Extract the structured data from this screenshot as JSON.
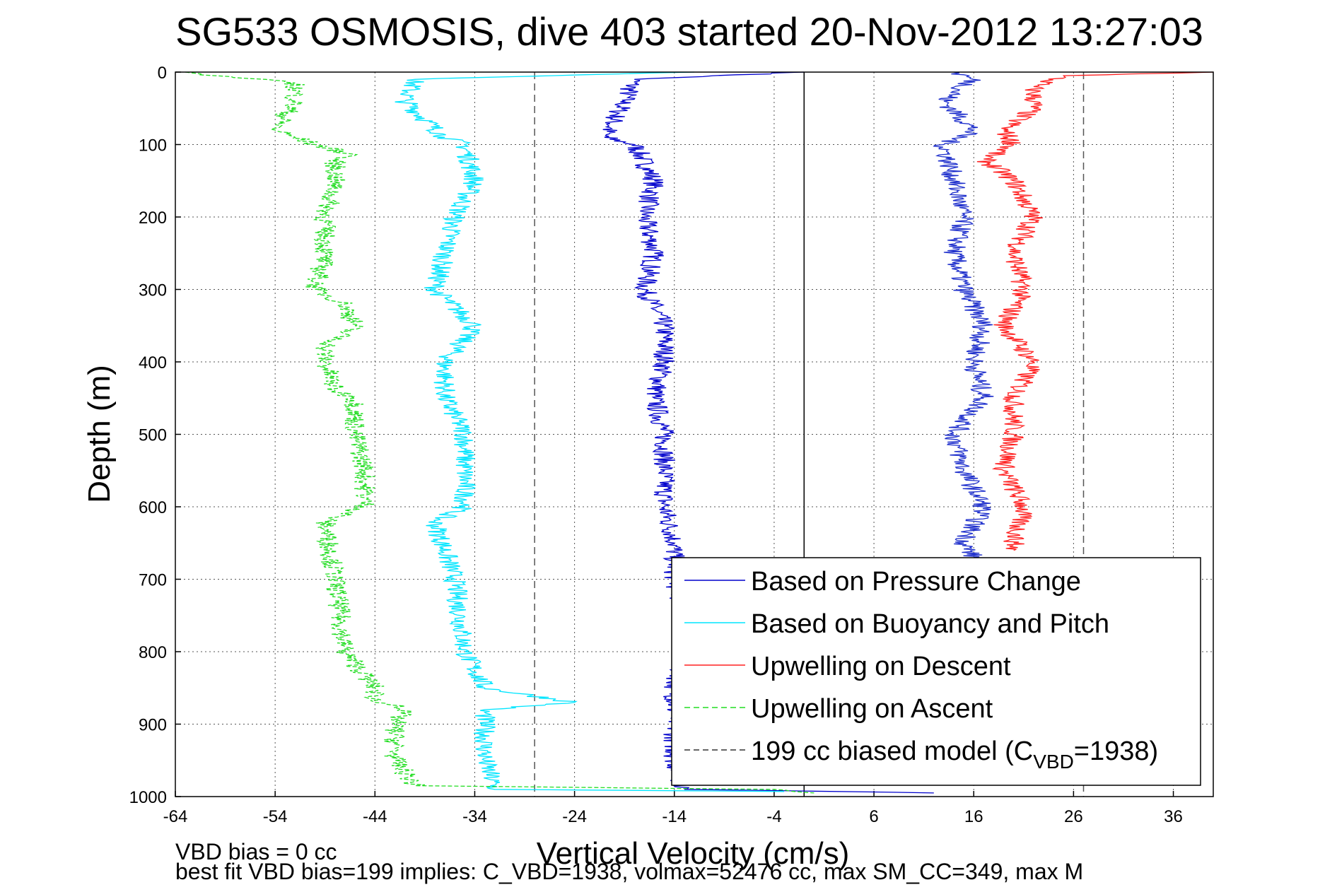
{
  "chart_data": {
    "type": "line",
    "title": "SG533 OSMOSIS, dive 403 started 20-Nov-2012 13:27:03",
    "xlabel": "Vertical Velocity (cm/s)",
    "ylabel": "Depth (m)",
    "xlim": [
      -64,
      40
    ],
    "ylim": [
      0,
      1000
    ],
    "y_reversed": true,
    "grid": true,
    "x_ticks": [
      -64,
      -54,
      -44,
      -34,
      -24,
      -14,
      -4,
      6,
      16,
      26,
      36
    ],
    "y_ticks": [
      0,
      100,
      200,
      300,
      400,
      500,
      600,
      700,
      800,
      900,
      1000
    ],
    "reference_lines": [
      {
        "x": -1,
        "style": "solid",
        "color": "#000000"
      },
      {
        "x": -28,
        "style": "dashed",
        "color": "#555555"
      },
      {
        "x": 27,
        "style": "dashed",
        "color": "#555555"
      }
    ],
    "legend": {
      "position": "bottom-right",
      "entries": [
        {
          "label": "Based on Pressure Change",
          "color": "#0000cc",
          "style": "solid"
        },
        {
          "label": "Based on Buoyancy and Pitch",
          "color": "#00e5ff",
          "style": "solid"
        },
        {
          "label": "Upwelling on Descent",
          "color": "#ff2020",
          "style": "solid"
        },
        {
          "label": "Upwelling on Ascent",
          "color": "#22dd22",
          "style": "dashed"
        },
        {
          "label_prefix": "199 cc biased model (C",
          "label_sub": "VBD",
          "label_suffix": "=1938)",
          "color": "#333333",
          "style": "dashed"
        }
      ]
    },
    "series": [
      {
        "color": "#0000cc",
        "style": "solid",
        "points": [
          [
            -1,
            0
          ],
          [
            -18,
            10
          ],
          [
            -19,
            40
          ],
          [
            -21,
            90
          ],
          [
            -18,
            100
          ],
          [
            -16,
            150
          ],
          [
            -17,
            200
          ],
          [
            -16,
            250
          ],
          [
            -17,
            300
          ],
          [
            -15,
            350
          ],
          [
            -15,
            400
          ],
          [
            -16,
            450
          ],
          [
            -15,
            500
          ],
          [
            -15,
            550
          ],
          [
            -15,
            600
          ],
          [
            -14,
            650
          ],
          [
            -14,
            700
          ],
          [
            -13,
            750
          ],
          [
            -13,
            800
          ],
          [
            -14,
            850
          ],
          [
            -14,
            900
          ],
          [
            -14,
            950
          ],
          [
            -13,
            990
          ],
          [
            12,
            995
          ]
        ]
      },
      {
        "color": "#00e5ff",
        "style": "solid",
        "points": [
          [
            -12,
            0
          ],
          [
            -40,
            10
          ],
          [
            -41,
            40
          ],
          [
            -37,
            90
          ],
          [
            -35,
            100
          ],
          [
            -34,
            150
          ],
          [
            -36,
            200
          ],
          [
            -37,
            250
          ],
          [
            -38,
            300
          ],
          [
            -34,
            350
          ],
          [
            -37,
            400
          ],
          [
            -37,
            450
          ],
          [
            -35,
            500
          ],
          [
            -35,
            550
          ],
          [
            -35,
            600
          ],
          [
            -38,
            620
          ],
          [
            -36,
            700
          ],
          [
            -35,
            800
          ],
          [
            -33,
            850
          ],
          [
            -24,
            870
          ],
          [
            -33,
            880
          ],
          [
            -33,
            950
          ],
          [
            -32,
            990
          ],
          [
            -3,
            993
          ]
        ]
      },
      {
        "color": "#ff2020",
        "style": "solid",
        "points": [
          [
            40,
            0
          ],
          [
            25,
            5
          ],
          [
            22,
            20
          ],
          [
            22,
            50
          ],
          [
            19,
            80
          ],
          [
            20,
            100
          ],
          [
            17,
            120
          ],
          [
            20,
            150
          ],
          [
            22,
            200
          ],
          [
            20,
            250
          ],
          [
            21,
            300
          ],
          [
            19,
            350
          ],
          [
            22,
            400
          ],
          [
            20,
            450
          ],
          [
            20,
            500
          ],
          [
            19,
            550
          ],
          [
            21,
            600
          ],
          [
            20,
            650
          ],
          [
            20,
            660
          ]
        ]
      },
      {
        "color": "#1e2fcc",
        "style": "solid",
        "points": [
          [
            14,
            0
          ],
          [
            16,
            10
          ],
          [
            13,
            40
          ],
          [
            16,
            80
          ],
          [
            13,
            100
          ],
          [
            14,
            150
          ],
          [
            15,
            200
          ],
          [
            14,
            250
          ],
          [
            15,
            300
          ],
          [
            17,
            350
          ],
          [
            16,
            400
          ],
          [
            17,
            450
          ],
          [
            14,
            500
          ],
          [
            15,
            550
          ],
          [
            17,
            600
          ],
          [
            15,
            650
          ],
          [
            16,
            670
          ]
        ]
      },
      {
        "color": "#22dd22",
        "style": "dashed",
        "points": [
          [
            -63,
            0
          ],
          [
            -60,
            5
          ],
          [
            -52,
            15
          ],
          [
            -52,
            40
          ],
          [
            -54,
            80
          ],
          [
            -52,
            90
          ],
          [
            -50,
            100
          ],
          [
            -46,
            115
          ],
          [
            -48,
            120
          ],
          [
            -48,
            150
          ],
          [
            -49,
            200
          ],
          [
            -49,
            250
          ],
          [
            -50,
            300
          ],
          [
            -47,
            320
          ],
          [
            -46,
            350
          ],
          [
            -49,
            380
          ],
          [
            -49,
            400
          ],
          [
            -48,
            440
          ],
          [
            -46,
            450
          ],
          [
            -46,
            500
          ],
          [
            -45,
            550
          ],
          [
            -45,
            600
          ],
          [
            -49,
            620
          ],
          [
            -48,
            700
          ],
          [
            -47,
            800
          ],
          [
            -44,
            850
          ],
          [
            -44,
            870
          ],
          [
            -41,
            875
          ],
          [
            -42,
            900
          ],
          [
            -42,
            950
          ],
          [
            -40,
            985
          ],
          [
            -4,
            990
          ],
          [
            0,
            995
          ]
        ]
      }
    ],
    "annotations": [
      "VBD bias = 0 cc",
      "best fit VBD bias=199 implies: C_VBD=1938, volmax=52476 cc, max SM_CC=349, max M"
    ]
  }
}
